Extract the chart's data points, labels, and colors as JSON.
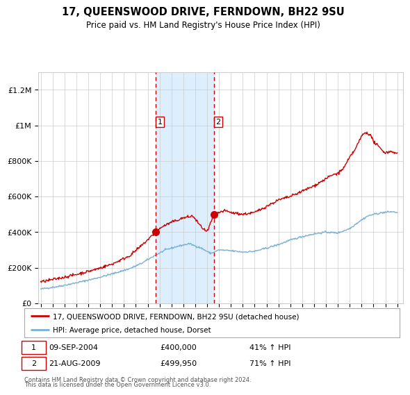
{
  "title": "17, QUEENSWOOD DRIVE, FERNDOWN, BH22 9SU",
  "subtitle": "Price paid vs. HM Land Registry's House Price Index (HPI)",
  "legend_line1": "17, QUEENSWOOD DRIVE, FERNDOWN, BH22 9SU (detached house)",
  "legend_line2": "HPI: Average price, detached house, Dorset",
  "sale1_label": "1",
  "sale2_label": "2",
  "sale1_date": "09-SEP-2004",
  "sale1_price": "£400,000",
  "sale1_pct": "41% ↑ HPI",
  "sale2_date": "21-AUG-2009",
  "sale2_price": "£499,950",
  "sale2_pct": "71% ↑ HPI",
  "footnote1": "Contains HM Land Registry data © Crown copyright and database right 2024.",
  "footnote2": "This data is licensed under the Open Government Licence v3.0.",
  "red_color": "#cc0000",
  "blue_color": "#7ab0d4",
  "shading_color": "#ddeeff",
  "grid_color": "#cccccc",
  "sale1_year_dec": 2004.667,
  "sale2_year_dec": 2009.583,
  "sale1_val": 400000,
  "sale2_val": 499950,
  "ylim_max": 1300000,
  "xlim_min": 1994.8,
  "xlim_max": 2025.5
}
